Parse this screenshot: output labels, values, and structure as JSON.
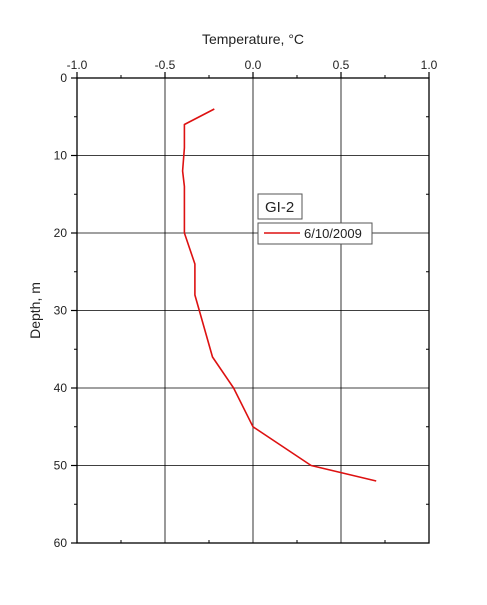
{
  "chart_data": {
    "type": "line",
    "title": "",
    "xlabel": "Temperature, °C",
    "ylabel": "Depth, m",
    "x_axis_position": "top",
    "y_axis_inverted": true,
    "xlim": [
      -1.0,
      1.0
    ],
    "ylim": [
      0,
      60
    ],
    "x_ticks": [
      "-1.0",
      "-0.5",
      "0.0",
      "0.5",
      "1.0"
    ],
    "y_ticks": [
      "0",
      "10",
      "20",
      "30",
      "40",
      "50",
      "60"
    ],
    "grid": true,
    "legend_title": "GI-2",
    "legend_placement": "center-right",
    "colors": {
      "series": "#dd1111",
      "grid": "#000000",
      "axis": "#000000"
    },
    "series": [
      {
        "name": "6/10/2009",
        "points": [
          {
            "temp": -0.22,
            "depth": 4
          },
          {
            "temp": -0.39,
            "depth": 6
          },
          {
            "temp": -0.39,
            "depth": 9
          },
          {
            "temp": -0.4,
            "depth": 12
          },
          {
            "temp": -0.39,
            "depth": 14
          },
          {
            "temp": -0.39,
            "depth": 20
          },
          {
            "temp": -0.33,
            "depth": 24
          },
          {
            "temp": -0.33,
            "depth": 28
          },
          {
            "temp": -0.23,
            "depth": 36
          },
          {
            "temp": -0.11,
            "depth": 40
          },
          {
            "temp": 0.0,
            "depth": 45
          },
          {
            "temp": 0.33,
            "depth": 50
          },
          {
            "temp": 0.7,
            "depth": 52
          }
        ]
      }
    ]
  }
}
